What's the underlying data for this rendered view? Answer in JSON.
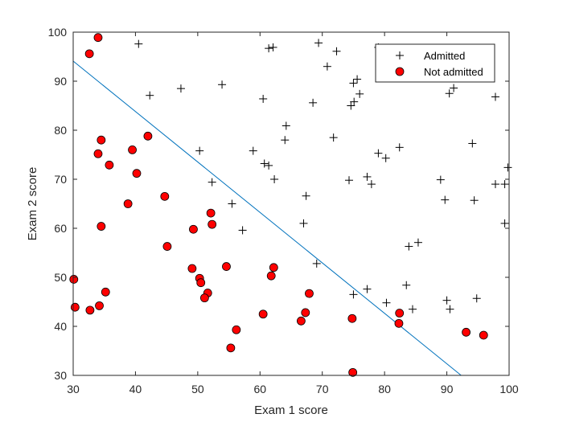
{
  "chart_data": {
    "type": "scatter",
    "xlabel": "Exam 1 score",
    "ylabel": "Exam 2 score",
    "xlim": [
      30,
      100
    ],
    "ylim": [
      30,
      100
    ],
    "xticks": [
      "30",
      "40",
      "50",
      "60",
      "70",
      "80",
      "90",
      "100"
    ],
    "yticks": [
      "30",
      "40",
      "50",
      "60",
      "70",
      "80",
      "90",
      "100"
    ],
    "grid": false,
    "legend_position": "top-right",
    "series": [
      {
        "name": "Admitted",
        "marker": "plus",
        "color": "#000000",
        "points": [
          [
            40.5,
            97.6
          ],
          [
            61.4,
            96.7
          ],
          [
            62.1,
            96.9
          ],
          [
            69.4,
            97.8
          ],
          [
            72.3,
            96.1
          ],
          [
            79.0,
            96.9
          ],
          [
            70.8,
            93.0
          ],
          [
            75.0,
            89.6
          ],
          [
            75.6,
            90.4
          ],
          [
            53.9,
            89.3
          ],
          [
            47.3,
            88.5
          ],
          [
            42.3,
            87.1
          ],
          [
            60.5,
            86.4
          ],
          [
            76.0,
            87.4
          ],
          [
            91.1,
            88.6
          ],
          [
            90.4,
            87.5
          ],
          [
            97.8,
            86.8
          ],
          [
            68.5,
            85.6
          ],
          [
            74.6,
            85.0
          ],
          [
            75.1,
            85.8
          ],
          [
            64.2,
            80.9
          ],
          [
            64.0,
            78.0
          ],
          [
            71.8,
            78.5
          ],
          [
            82.4,
            76.5
          ],
          [
            94.1,
            77.3
          ],
          [
            50.3,
            75.8
          ],
          [
            58.9,
            75.8
          ],
          [
            79.0,
            75.3
          ],
          [
            80.2,
            74.3
          ],
          [
            60.7,
            73.2
          ],
          [
            61.4,
            72.8
          ],
          [
            99.8,
            72.4
          ],
          [
            62.3,
            70.0
          ],
          [
            52.3,
            69.4
          ],
          [
            74.3,
            69.8
          ],
          [
            77.2,
            70.5
          ],
          [
            77.9,
            69.0
          ],
          [
            89.0,
            69.9
          ],
          [
            97.8,
            69.0
          ],
          [
            99.3,
            69.0
          ],
          [
            67.4,
            66.6
          ],
          [
            89.7,
            65.8
          ],
          [
            94.4,
            65.7
          ],
          [
            55.5,
            65.0
          ],
          [
            67.0,
            61.0
          ],
          [
            99.3,
            61.0
          ],
          [
            57.2,
            59.6
          ],
          [
            85.4,
            57.1
          ],
          [
            83.9,
            56.3
          ],
          [
            69.1,
            52.8
          ],
          [
            83.5,
            48.4
          ],
          [
            77.2,
            47.6
          ],
          [
            75.0,
            46.5
          ],
          [
            80.3,
            44.8
          ],
          [
            94.8,
            45.7
          ],
          [
            90.0,
            45.3
          ],
          [
            84.5,
            43.5
          ],
          [
            90.5,
            43.5
          ]
        ]
      },
      {
        "name": "Not admitted",
        "marker": "circle",
        "color": "#ff0000",
        "points": [
          [
            34.0,
            98.9
          ],
          [
            32.6,
            95.6
          ],
          [
            34.5,
            78.0
          ],
          [
            42.0,
            78.8
          ],
          [
            39.5,
            76.0
          ],
          [
            34.0,
            75.2
          ],
          [
            35.8,
            72.9
          ],
          [
            40.2,
            71.2
          ],
          [
            44.7,
            66.5
          ],
          [
            38.8,
            65.0
          ],
          [
            52.1,
            63.1
          ],
          [
            52.3,
            60.8
          ],
          [
            49.3,
            59.8
          ],
          [
            34.5,
            60.4
          ],
          [
            45.1,
            56.3
          ],
          [
            54.6,
            52.2
          ],
          [
            62.2,
            52.0
          ],
          [
            49.1,
            51.8
          ],
          [
            61.8,
            50.3
          ],
          [
            50.3,
            49.8
          ],
          [
            50.5,
            48.9
          ],
          [
            30.1,
            49.6
          ],
          [
            35.2,
            47.0
          ],
          [
            51.6,
            46.8
          ],
          [
            67.9,
            46.7
          ],
          [
            51.1,
            45.8
          ],
          [
            30.3,
            43.9
          ],
          [
            34.2,
            44.2
          ],
          [
            32.7,
            43.3
          ],
          [
            60.5,
            42.5
          ],
          [
            67.3,
            42.8
          ],
          [
            82.4,
            42.7
          ],
          [
            66.6,
            41.1
          ],
          [
            74.8,
            41.6
          ],
          [
            82.3,
            40.6
          ],
          [
            56.2,
            39.3
          ],
          [
            93.1,
            38.8
          ],
          [
            95.9,
            38.2
          ],
          [
            55.3,
            35.6
          ],
          [
            74.9,
            30.6
          ]
        ]
      }
    ],
    "decision_boundary": {
      "color": "#0072bd",
      "points": [
        [
          30,
          94.1
        ],
        [
          92.3,
          30
        ]
      ]
    }
  }
}
